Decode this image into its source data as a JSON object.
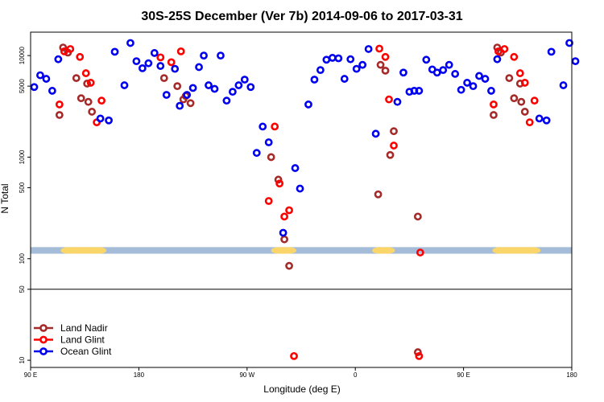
{
  "chart_data": {
    "type": "scatter",
    "title": "30S-25S December (Ver 7b)   2014-09-06 to 2017-03-31",
    "xlabel": "Longitude (deg E)",
    "ylabel": "N Total",
    "x_ticks": [
      {
        "value": 90,
        "label": "90 E"
      },
      {
        "value": 180,
        "label": "180"
      },
      {
        "value": 270,
        "label": "90 W"
      },
      {
        "value": 360,
        "label": "0"
      },
      {
        "value": 450,
        "label": "90 E"
      },
      {
        "value": 540,
        "label": "180"
      }
    ],
    "y_ticks": [
      {
        "value": 10,
        "label": "10"
      },
      {
        "value": 50,
        "label": "50"
      },
      {
        "value": 100,
        "label": "100"
      },
      {
        "value": 500,
        "label": "500"
      },
      {
        "value": 1000,
        "label": "1000"
      },
      {
        "value": 5000,
        "label": "5000"
      },
      {
        "value": 10000,
        "label": "10000"
      }
    ],
    "xlim": [
      90,
      540
    ],
    "ylim_log": [
      8.5,
      17000
    ],
    "split_value": 50,
    "band": {
      "value_low": 112,
      "value_high": 130,
      "color": "#a5bcd9",
      "highlight_color": "#fad56a",
      "highlight_ranges": [
        [
          115,
          153
        ],
        [
          290,
          311
        ],
        [
          374,
          393
        ],
        [
          474,
          514
        ]
      ]
    },
    "legend_position": "bottom-left",
    "series": [
      {
        "name": "Land Nadir",
        "color": "#a52a2a",
        "points": [
          [
            114,
            2600
          ],
          [
            117,
            12000
          ],
          [
            121,
            10700
          ],
          [
            128,
            6000
          ],
          [
            132,
            3800
          ],
          [
            137,
            5300
          ],
          [
            138,
            3500
          ],
          [
            141,
            2800
          ],
          [
            201,
            6000
          ],
          [
            212,
            5000
          ],
          [
            217,
            3700
          ],
          [
            219,
            4000
          ],
          [
            223,
            3400
          ],
          [
            290,
            1000
          ],
          [
            296,
            600
          ],
          [
            301,
            155
          ],
          [
            305,
            85
          ],
          [
            379,
            430
          ],
          [
            381,
            8100
          ],
          [
            385,
            7100
          ],
          [
            389,
            1050
          ],
          [
            392,
            1800
          ],
          [
            412,
            260
          ],
          [
            412,
            12
          ],
          [
            475,
            2600
          ],
          [
            478,
            12000
          ],
          [
            481,
            10700
          ],
          [
            488,
            6000
          ],
          [
            492,
            3800
          ],
          [
            497,
            5300
          ],
          [
            498,
            3500
          ],
          [
            501,
            2800
          ]
        ]
      },
      {
        "name": "Land Glint",
        "color": "#ff0000",
        "points": [
          [
            114,
            3300
          ],
          [
            118,
            11000
          ],
          [
            123,
            11600
          ],
          [
            131,
            9700
          ],
          [
            136,
            6700
          ],
          [
            140,
            5400
          ],
          [
            145,
            2200
          ],
          [
            149,
            3600
          ],
          [
            198,
            9600
          ],
          [
            207,
            8600
          ],
          [
            215,
            11000
          ],
          [
            288,
            370
          ],
          [
            293,
            2000
          ],
          [
            297,
            550
          ],
          [
            301,
            260
          ],
          [
            305,
            300
          ],
          [
            309,
            11
          ],
          [
            380,
            11700
          ],
          [
            385,
            9700
          ],
          [
            388,
            3700
          ],
          [
            392,
            1300
          ],
          [
            413,
            11
          ],
          [
            414,
            115
          ],
          [
            475,
            3300
          ],
          [
            479,
            11000
          ],
          [
            484,
            11600
          ],
          [
            492,
            9700
          ],
          [
            497,
            6700
          ],
          [
            501,
            5400
          ],
          [
            505,
            2200
          ],
          [
            509,
            3600
          ]
        ]
      },
      {
        "name": "Ocean Glint",
        "color": "#0000ee",
        "points": [
          [
            93,
            4900
          ],
          [
            98,
            6400
          ],
          [
            103,
            5900
          ],
          [
            108,
            4500
          ],
          [
            113,
            9200
          ],
          [
            148,
            2400
          ],
          [
            155,
            2300
          ],
          [
            160,
            10900
          ],
          [
            168,
            5100
          ],
          [
            173,
            13300
          ],
          [
            178,
            8800
          ],
          [
            183,
            7500
          ],
          [
            188,
            8400
          ],
          [
            193,
            10600
          ],
          [
            198,
            7900
          ],
          [
            203,
            4100
          ],
          [
            210,
            7400
          ],
          [
            214,
            3200
          ],
          [
            220,
            4100
          ],
          [
            225,
            4800
          ],
          [
            230,
            7700
          ],
          [
            234,
            10000
          ],
          [
            238,
            5100
          ],
          [
            243,
            4700
          ],
          [
            248,
            10000
          ],
          [
            253,
            3600
          ],
          [
            258,
            4400
          ],
          [
            263,
            5100
          ],
          [
            268,
            5800
          ],
          [
            273,
            4900
          ],
          [
            278,
            1100
          ],
          [
            283,
            2000
          ],
          [
            288,
            1400
          ],
          [
            310,
            780
          ],
          [
            314,
            490
          ],
          [
            300,
            180
          ],
          [
            321,
            3300
          ],
          [
            326,
            5800
          ],
          [
            331,
            7200
          ],
          [
            336,
            9100
          ],
          [
            341,
            9500
          ],
          [
            346,
            9400
          ],
          [
            351,
            5900
          ],
          [
            356,
            9200
          ],
          [
            361,
            7400
          ],
          [
            366,
            8100
          ],
          [
            371,
            11600
          ],
          [
            377,
            1700
          ],
          [
            395,
            3500
          ],
          [
            400,
            6800
          ],
          [
            405,
            4400
          ],
          [
            409,
            4500
          ],
          [
            413,
            4500
          ],
          [
            419,
            9100
          ],
          [
            424,
            7300
          ],
          [
            428,
            6800
          ],
          [
            433,
            7200
          ],
          [
            438,
            8100
          ],
          [
            443,
            6600
          ],
          [
            448,
            4600
          ],
          [
            453,
            5400
          ],
          [
            458,
            5000
          ],
          [
            463,
            6300
          ],
          [
            468,
            5900
          ],
          [
            473,
            4500
          ],
          [
            478,
            9200
          ],
          [
            513,
            2400
          ],
          [
            519,
            2300
          ],
          [
            523,
            10900
          ],
          [
            533,
            5100
          ],
          [
            538,
            13300
          ],
          [
            543,
            8800
          ]
        ]
      }
    ]
  }
}
